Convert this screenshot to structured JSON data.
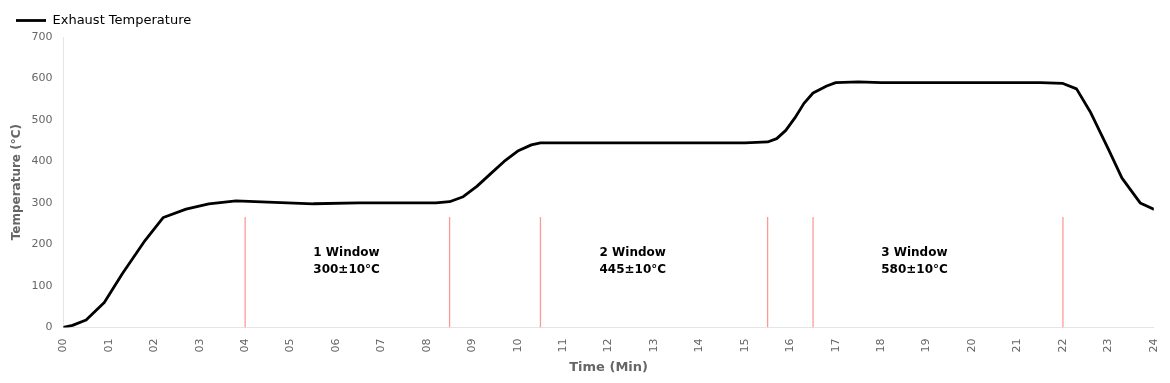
{
  "chart_data": {
    "type": "line",
    "title": "",
    "xlabel": "Time (Min)",
    "ylabel": "Temperature (°C)",
    "xlim": [
      0,
      24
    ],
    "ylim": [
      0,
      700
    ],
    "xticks": [
      {
        "value": 0,
        "label": "00"
      },
      {
        "value": 1,
        "label": "01"
      },
      {
        "value": 2,
        "label": "02"
      },
      {
        "value": 3,
        "label": "03"
      },
      {
        "value": 4,
        "label": "04"
      },
      {
        "value": 5,
        "label": "05"
      },
      {
        "value": 6,
        "label": "06"
      },
      {
        "value": 7,
        "label": "07"
      },
      {
        "value": 8,
        "label": "08"
      },
      {
        "value": 9,
        "label": "09"
      },
      {
        "value": 10,
        "label": "10"
      },
      {
        "value": 11,
        "label": "11"
      },
      {
        "value": 12,
        "label": "12"
      },
      {
        "value": 13,
        "label": "13"
      },
      {
        "value": 14,
        "label": "14"
      },
      {
        "value": 15,
        "label": "15"
      },
      {
        "value": 16,
        "label": "16"
      },
      {
        "value": 17,
        "label": "17"
      },
      {
        "value": 18,
        "label": "18"
      },
      {
        "value": 19,
        "label": "19"
      },
      {
        "value": 20,
        "label": "20"
      },
      {
        "value": 21,
        "label": "21"
      },
      {
        "value": 22,
        "label": "22"
      },
      {
        "value": 23,
        "label": "23"
      },
      {
        "value": 24,
        "label": "24"
      }
    ],
    "yticks": [
      0,
      100,
      200,
      300,
      400,
      500,
      600,
      700
    ],
    "grid": false,
    "legend": "upper left",
    "x": [
      0,
      0.2,
      0.5,
      0.9,
      1.3,
      1.8,
      2.2,
      2.7,
      3.2,
      3.8,
      4.5,
      5.5,
      6.5,
      7.5,
      8.2,
      8.5,
      8.8,
      9.1,
      9.4,
      9.7,
      10.0,
      10.3,
      10.5,
      11.0,
      12.0,
      13.0,
      14.0,
      15.0,
      15.5,
      15.7,
      15.9,
      16.1,
      16.3,
      16.5,
      16.8,
      17.0,
      17.5,
      18.0,
      19.0,
      20.0,
      21.0,
      21.5,
      22.0,
      22.3,
      22.6,
      23.0,
      23.3,
      23.7,
      24.0
    ],
    "series": [
      {
        "name": "Exhaust Temperature",
        "color": "#000000",
        "values": [
          0,
          5,
          18,
          60,
          130,
          210,
          265,
          285,
          298,
          305,
          302,
          298,
          300,
          300,
          300,
          303,
          315,
          340,
          370,
          400,
          425,
          440,
          445,
          445,
          445,
          445,
          445,
          445,
          447,
          455,
          475,
          505,
          540,
          565,
          582,
          590,
          592,
          590,
          590,
          590,
          590,
          590,
          588,
          575,
          520,
          430,
          360,
          300,
          285
        ]
      }
    ],
    "window_lines": {
      "x": [
        4.0,
        8.5,
        10.5,
        15.5,
        16.5,
        22.0
      ],
      "color": "#ff9999"
    },
    "annotations": [
      {
        "x": 5.5,
        "y": 160,
        "text": "1 Window\n300±10°C"
      },
      {
        "x": 11.8,
        "y": 160,
        "text": "2 Window\n445±10°C"
      },
      {
        "x": 18.0,
        "y": 160,
        "text": "3 Window\n580±10°C"
      }
    ]
  }
}
